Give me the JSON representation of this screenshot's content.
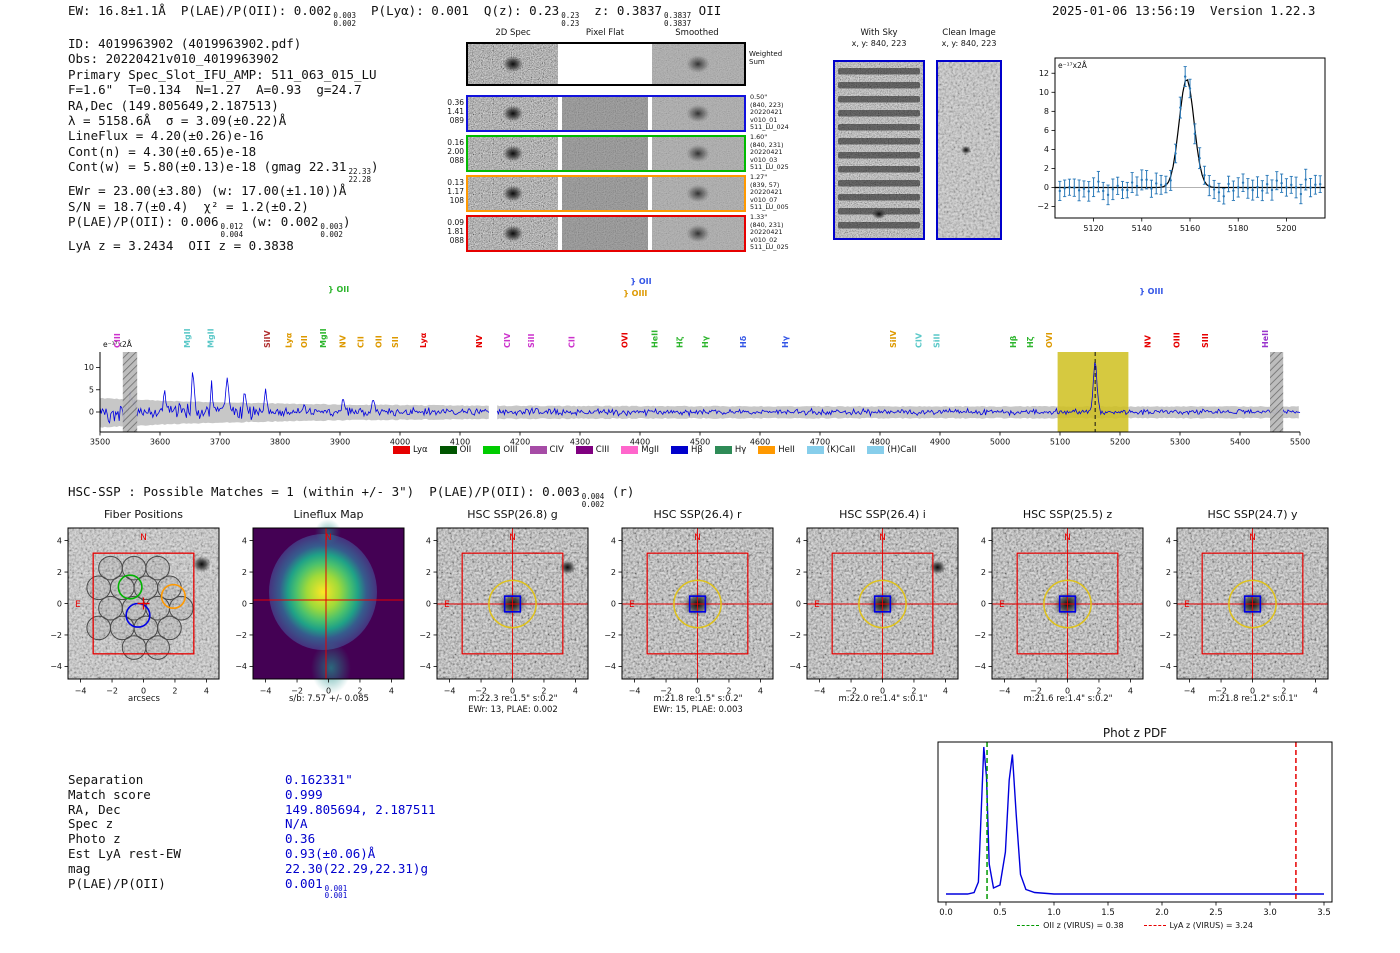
{
  "meta": {
    "timestamp_version": "2025-01-06 13:56:19  Version 1.22.3"
  },
  "header": {
    "segments": [
      {
        "t": "EW: 16.8±1.1Å  P(LAE)/P(OII): 0.002"
      },
      {
        "frac": [
          "0.003",
          "0.002"
        ]
      },
      {
        "t": "  P(Lyα): 0.001  Q(z): 0.23"
      },
      {
        "frac": [
          "0.23",
          "0.23"
        ]
      },
      {
        "t": "  z: 0.3837"
      },
      {
        "frac": [
          "0.3837",
          "0.3837"
        ]
      },
      {
        "t": " OII"
      }
    ]
  },
  "info_block": {
    "lines": [
      [
        {
          "t": "ID: 4019963902 (4019963902.pdf)"
        }
      ],
      [
        {
          "t": "Obs: 20220421v010_4019963902"
        }
      ],
      [
        {
          "t": "Primary Spec_Slot_IFU_AMP: 511_063_015_LU"
        }
      ],
      [
        {
          "t": "F=1.6\"  T=0.134  N=1.27  A=0.93  g=24.7"
        }
      ],
      [
        {
          "t": "RA,Dec (149.805649,2.187513)"
        }
      ],
      [
        {
          "t": "λ = 5158.6Å  σ = 3.09(±0.22)Å"
        }
      ],
      [
        {
          "t": "LineFlux = 4.20(±0.26)e-16"
        }
      ],
      [
        {
          "t": "Cont(n) = 4.30(±0.65)e-18"
        }
      ],
      [
        {
          "t": "Cont(w) = 5.80(±0.13)e-18 (gmag 22.31"
        },
        {
          "frac": [
            "22.33",
            "22.28"
          ]
        },
        {
          "t": ")"
        }
      ],
      [
        {
          "t": "EWr = 23.00(±3.80) (w: 17.00(±1.10))Å"
        }
      ],
      [
        {
          "t": "S/N = 18.7(±0.4)  χ² = 1.2(±0.2)"
        }
      ],
      [
        {
          "t": "P(LAE)/P(OII): 0.006"
        },
        {
          "frac": [
            "0.012",
            "0.004"
          ]
        },
        {
          "t": " (w: 0.002"
        },
        {
          "frac": [
            "0.003",
            "0.002"
          ]
        },
        {
          "t": ")"
        }
      ],
      [
        {
          "t": "LyA z = 3.2434  OII z = 0.3838"
        }
      ]
    ]
  },
  "spec2d": {
    "col_titles": [
      "2D Spec",
      "Pixel Flat",
      "Smoothed"
    ],
    "weighted_sum": [
      "Weighted",
      "Sum"
    ],
    "rows": [
      {
        "border": "#000000",
        "left": [],
        "right": []
      },
      {
        "border": "#1111dd",
        "left": [
          "0.36",
          "1.41",
          "089"
        ],
        "right": [
          "0.50\"",
          "(840, 223)",
          "20220421",
          "v010_01",
          "511_LU_024"
        ]
      },
      {
        "border": "#00bb00",
        "left": [
          "0.16",
          "2.00",
          "088"
        ],
        "right": [
          "1.60\"",
          "(840, 231)",
          "20220421",
          "v010_03",
          "511_LU_025"
        ]
      },
      {
        "border": "#ff9900",
        "left": [
          "0.13",
          "1.17",
          "108"
        ],
        "right": [
          "1.27\"",
          "(839, 57)",
          "20220421",
          "v010_07",
          "511_LU_005"
        ]
      },
      {
        "border": "#e60000",
        "left": [
          "0.09",
          "1.81",
          "088"
        ],
        "right": [
          "1.33\"",
          "(840, 231)",
          "20220421",
          "v010_02",
          "511_LU_025"
        ]
      }
    ]
  },
  "sky_panels": {
    "with_sky": {
      "title": "With Sky",
      "coords": "x, y: 840, 223"
    },
    "clean": {
      "title": "Clean Image",
      "coords": "x, y: 840, 223"
    }
  },
  "hsc_line": {
    "segments": [
      {
        "t": "HSC-SSP : Possible Matches = 1 (within +/- 3\")  P(LAE)/P(OII): 0.003"
      },
      {
        "frac": [
          "0.004",
          "0.002"
        ]
      },
      {
        "t": " (r)"
      }
    ]
  },
  "legend": [
    {
      "label": "Lyα",
      "color": "#e60000"
    },
    {
      "label": "OII",
      "color": "#005500"
    },
    {
      "label": "OIII",
      "color": "#00cc00"
    },
    {
      "label": "CIV",
      "color": "#a64ca6"
    },
    {
      "label": "CIII",
      "color": "#800080"
    },
    {
      "label": "MgII",
      "color": "#ff66cc"
    },
    {
      "label": "Hβ",
      "color": "#0000cc"
    },
    {
      "label": "Hγ",
      "color": "#2e8b57"
    },
    {
      "label": "HeII",
      "color": "#ff9900"
    },
    {
      "label": "(K)CaII",
      "color": "#87ceeb"
    },
    {
      "label": "(H)CaII",
      "color": "#87ceeb"
    }
  ],
  "cutouts": {
    "axis_ticks": [
      -4,
      -2,
      0,
      2,
      4
    ],
    "compass": {
      "north": "N",
      "east": "E"
    },
    "overlay": {
      "box_arcsec": 3.2,
      "circle_arcsec": 1.5,
      "square_arcsec": 0.75
    },
    "fibers": {
      "radius": 0.75,
      "gray": [
        [
          -2.1,
          2.25
        ],
        [
          -0.6,
          2.25
        ],
        [
          0.9,
          2.25
        ],
        [
          -2.85,
          1.0
        ],
        [
          -1.35,
          1.0
        ],
        [
          0.15,
          1.0
        ],
        [
          1.65,
          1.0
        ],
        [
          -2.1,
          -0.3
        ],
        [
          -0.6,
          -0.3
        ],
        [
          0.9,
          -0.3
        ],
        [
          2.4,
          -0.3
        ],
        [
          -2.85,
          -1.55
        ],
        [
          -1.35,
          -1.55
        ],
        [
          0.15,
          -1.55
        ],
        [
          1.65,
          -1.55
        ],
        [
          -0.6,
          -2.8
        ],
        [
          0.9,
          -2.8
        ]
      ],
      "green": [
        -0.85,
        1.05
      ],
      "blue": [
        -0.35,
        -0.75
      ],
      "orange": [
        1.9,
        0.45
      ]
    },
    "panels": [
      {
        "type": "fibers",
        "title": "Fiber Positions",
        "caption1": "arcsecs"
      },
      {
        "type": "lineflux",
        "title": "Lineflux Map",
        "caption1": "s/b: 7.57 +/- 0.085"
      },
      {
        "type": "image",
        "title": "HSC SSP(26.8) g",
        "caption1": "m:22.3 re:1.5\" s:0.2\"",
        "caption2": "EWr: 13, PLAE: 0.002",
        "blob2": true
      },
      {
        "type": "image",
        "title": "HSC SSP(26.4) r",
        "caption1": "m:21.8 re:1.5\" s:0.2\"",
        "caption2": "EWr: 15, PLAE: 0.003"
      },
      {
        "type": "image",
        "title": "HSC SSP(26.4) i",
        "caption1": "m:22.0 re:1.4\" s:0.1\"",
        "blob2": true
      },
      {
        "type": "image",
        "title": "HSC SSP(25.5) z",
        "caption1": "m:21.6 re:1.4\" s:0.2\""
      },
      {
        "type": "image",
        "title": "HSC SSP(24.7) y",
        "caption1": "m:21.8 re:1.2\" s:0.1\""
      }
    ]
  },
  "match_table": {
    "rows": [
      {
        "label": "Separation",
        "value": [
          {
            "t": "0.162331\""
          }
        ]
      },
      {
        "label": "Match score",
        "value": [
          {
            "t": "0.999"
          }
        ]
      },
      {
        "label": "RA, Dec",
        "value": [
          {
            "t": "149.805694, 2.187511"
          }
        ]
      },
      {
        "label": "Spec z",
        "value": [
          {
            "t": "N/A"
          }
        ]
      },
      {
        "label": "Photo z",
        "value": [
          {
            "t": "0.36"
          }
        ]
      },
      {
        "label": "Est LyA rest-EW",
        "value": [
          {
            "t": "0.93(±0.06)Å"
          }
        ]
      },
      {
        "label": "mag",
        "value": [
          {
            "t": "22.30(22.29,22.31)g"
          }
        ]
      },
      {
        "label": "P(LAE)/P(OII)",
        "value": [
          {
            "t": "0.001"
          },
          {
            "frac": [
              "0.001",
              "0.001"
            ]
          }
        ]
      }
    ]
  },
  "photz": {
    "title": "Phot z PDF",
    "legend": [
      {
        "label": "OII z (VIRUS) = 0.38",
        "color": "#009900"
      },
      {
        "label": "LyA z (VIRUS) = 3.24",
        "color": "#e60000"
      }
    ]
  },
  "chart_data": [
    {
      "type": "line",
      "name": "full_spectrum",
      "ylabel": "e⁻¹⁷x2Å",
      "x_range": [
        3500,
        5500
      ],
      "xticks": [
        3500,
        3600,
        3700,
        3800,
        3900,
        4000,
        4100,
        4200,
        4300,
        4400,
        4500,
        4600,
        4700,
        4800,
        4900,
        5000,
        5100,
        5200,
        5300,
        5400,
        5500
      ],
      "yticks": [
        0,
        5,
        10
      ],
      "detection_wavelength": 5158.6,
      "highlight_band": [
        5096,
        5214
      ],
      "masked_bands": [
        [
          3538,
          3562
        ],
        [
          5450,
          5472
        ]
      ],
      "chip_gap": [
        4148,
        4162
      ],
      "peaks": [
        {
          "wl": 3552,
          "sigma": 3,
          "amp": 3.2
        },
        {
          "wl": 3608,
          "sigma": 2.5,
          "amp": 5.5
        },
        {
          "wl": 3655,
          "sigma": 2.5,
          "amp": 8.2
        },
        {
          "wl": 3686,
          "sigma": 2,
          "amp": 6.0
        },
        {
          "wl": 3712,
          "sigma": 2.5,
          "amp": 7.0
        },
        {
          "wl": 3742,
          "sigma": 2,
          "amp": 4.6
        },
        {
          "wl": 3776,
          "sigma": 2,
          "amp": 5.0
        },
        {
          "wl": 3905,
          "sigma": 2,
          "amp": 2.6
        },
        {
          "wl": 3955,
          "sigma": 2,
          "amp": 3.0
        },
        {
          "wl": 5158.6,
          "sigma": 3.09,
          "amp": 11.3
        }
      ],
      "line_labels": [
        {
          "name": "CIII",
          "wl": 3528,
          "color": "#cc33cc"
        },
        {
          "name": "MgII",
          "wl": 3645,
          "color": "#5bc8c8"
        },
        {
          "name": "MgII",
          "wl": 3684,
          "color": "#5bc8c8"
        },
        {
          "name": "SiIV",
          "wl": 3778,
          "color": "#b03030"
        },
        {
          "name": "Lyα",
          "wl": 3814,
          "color": "#dd9900"
        },
        {
          "name": "OII",
          "wl": 3840,
          "color": "#dd9900"
        },
        {
          "name": "MgII",
          "wl": 3872,
          "color": "#2db52d"
        },
        {
          "name": "NV",
          "wl": 3904,
          "color": "#dd9900"
        },
        {
          "name": "CII",
          "wl": 3934,
          "color": "#dd9900"
        },
        {
          "name": "OII",
          "wl": 3964,
          "color": "#dd9900"
        },
        {
          "name": "SII",
          "wl": 3992,
          "color": "#dd9900"
        },
        {
          "name": "Lyα",
          "wl": 4038,
          "color": "#e60000"
        },
        {
          "name": "NV",
          "wl": 4132,
          "color": "#e60000"
        },
        {
          "name": "CIV",
          "wl": 4178,
          "color": "#cc33cc"
        },
        {
          "name": "SiII",
          "wl": 4218,
          "color": "#cc33cc"
        },
        {
          "name": "CII",
          "wl": 4286,
          "color": "#cc33cc"
        },
        {
          "name": "OVI",
          "wl": 4374,
          "color": "#e60000"
        },
        {
          "name": "HeII",
          "wl": 4424,
          "color": "#2db52d"
        },
        {
          "name": "Hζ",
          "wl": 4466,
          "color": "#2db52d"
        },
        {
          "name": "Hγ",
          "wl": 4508,
          "color": "#2db52d"
        },
        {
          "name": "Hδ",
          "wl": 4572,
          "color": "#3355e6"
        },
        {
          "name": "Hγ",
          "wl": 4642,
          "color": "#3355e6"
        },
        {
          "name": "SiIV",
          "wl": 4822,
          "color": "#dd9900"
        },
        {
          "name": "CIV",
          "wl": 4864,
          "color": "#5bc8c8"
        },
        {
          "name": "SiII",
          "wl": 4894,
          "color": "#5bc8c8"
        },
        {
          "name": "Hβ",
          "wl": 5022,
          "color": "#2db52d"
        },
        {
          "name": "Hζ",
          "wl": 5050,
          "color": "#2db52d"
        },
        {
          "name": "OVI",
          "wl": 5082,
          "color": "#dd9900"
        },
        {
          "name": "NV",
          "wl": 5246,
          "color": "#e60000"
        },
        {
          "name": "OIII",
          "wl": 5294,
          "color": "#e60000"
        },
        {
          "name": "SIII",
          "wl": 5342,
          "color": "#e60000"
        },
        {
          "name": "HeII",
          "wl": 5442,
          "color": "#9933cc"
        }
      ],
      "bracket_labels": [
        {
          "text": "} OII",
          "wl": 3880,
          "y": 20,
          "color": "#2db52d"
        },
        {
          "text": "} OII",
          "wl": 4384,
          "y": 12,
          "color": "#3355e6"
        },
        {
          "text": "} OIII",
          "wl": 4372,
          "y": 24,
          "color": "#dd9900"
        },
        {
          "text": "} OIII",
          "wl": 5232,
          "y": 22,
          "color": "#3355e6"
        }
      ]
    },
    {
      "type": "scatter",
      "name": "line_fit_zoom",
      "ylabel": "e⁻¹⁷x2Å",
      "x_range": [
        5104,
        5216
      ],
      "xticks": [
        5120,
        5140,
        5160,
        5180,
        5200
      ],
      "yticks": [
        -2,
        0,
        2,
        4,
        6,
        8,
        10,
        12
      ],
      "gaussian_fit": {
        "mu": 5158.6,
        "sigma": 3.09,
        "amplitude": 11.4
      }
    },
    {
      "type": "line",
      "name": "phot_z_pdf",
      "title": "Phot z PDF",
      "x_range": [
        0,
        3.5
      ],
      "xticks": [
        "0.0",
        "0.5",
        "1.0",
        "1.5",
        "2.0",
        "2.5",
        "3.0",
        "3.5"
      ],
      "points": [
        [
          0.0,
          0.02
        ],
        [
          0.2,
          0.02
        ],
        [
          0.26,
          0.03
        ],
        [
          0.3,
          0.1
        ],
        [
          0.325,
          0.55
        ],
        [
          0.35,
          1.0
        ],
        [
          0.375,
          0.8
        ],
        [
          0.4,
          0.22
        ],
        [
          0.44,
          0.06
        ],
        [
          0.5,
          0.08
        ],
        [
          0.55,
          0.3
        ],
        [
          0.585,
          0.78
        ],
        [
          0.615,
          0.95
        ],
        [
          0.65,
          0.55
        ],
        [
          0.69,
          0.15
        ],
        [
          0.74,
          0.05
        ],
        [
          0.82,
          0.03
        ],
        [
          1.0,
          0.02
        ],
        [
          1.5,
          0.02
        ],
        [
          2.0,
          0.02
        ],
        [
          2.5,
          0.02
        ],
        [
          3.0,
          0.02
        ],
        [
          3.5,
          0.02
        ]
      ],
      "vlines": [
        {
          "x": 0.38,
          "color": "#009900",
          "label": "OII z (VIRUS) = 0.38"
        },
        {
          "x": 3.24,
          "color": "#e60000",
          "label": "LyA z (VIRUS) = 3.24"
        }
      ]
    }
  ]
}
